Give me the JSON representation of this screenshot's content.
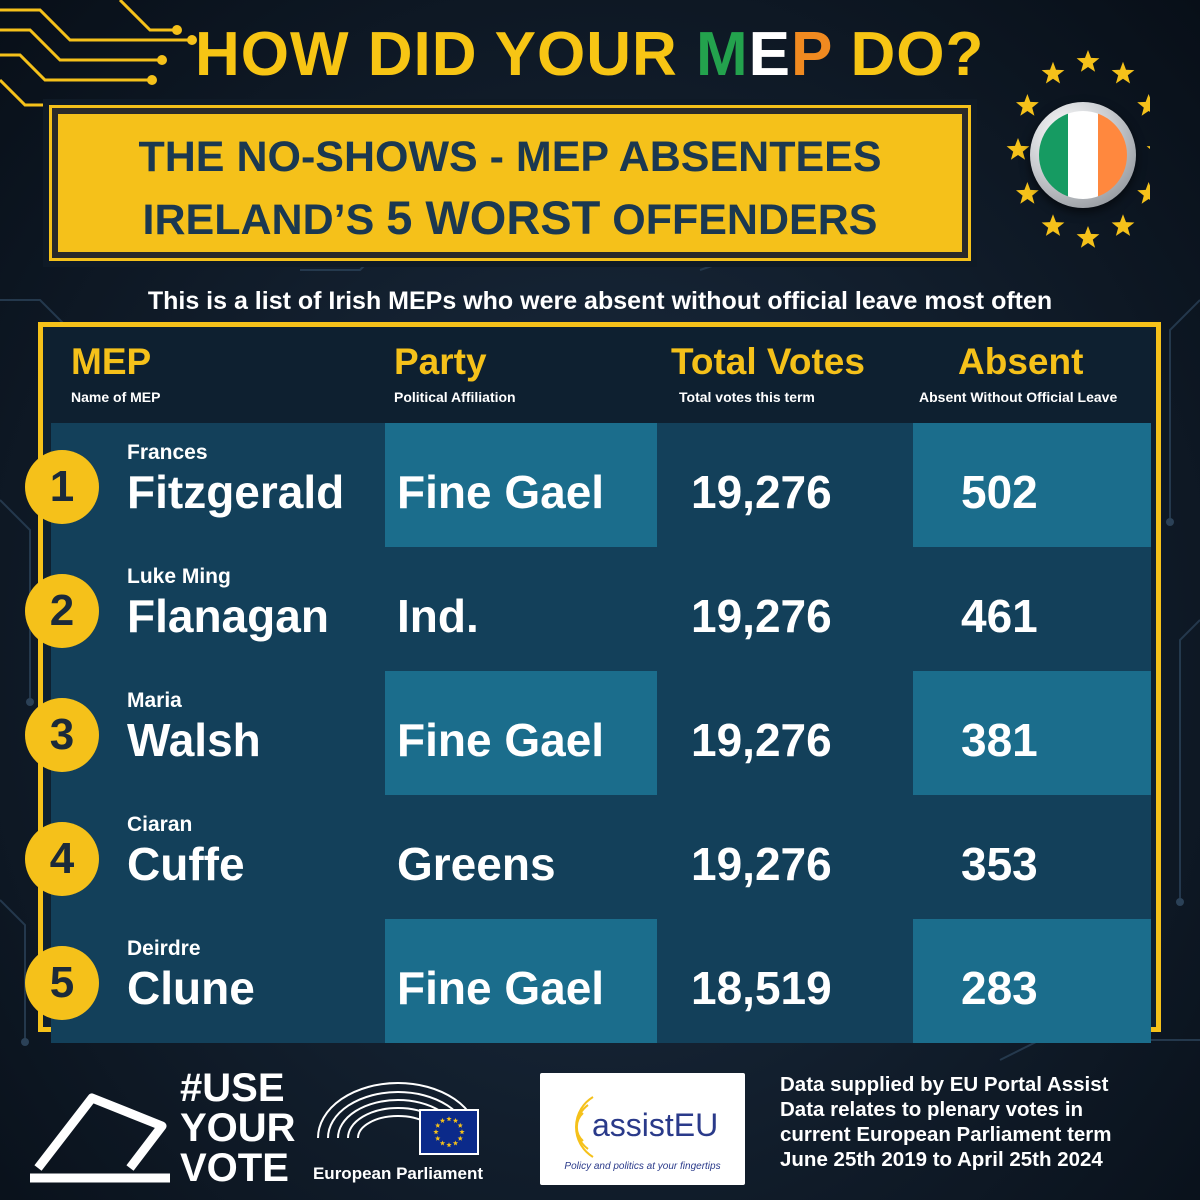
{
  "headline": {
    "part1": "HOW DID YOUR ",
    "m": "M",
    "e": "E",
    "p": "P",
    "part2": " DO?"
  },
  "title": {
    "line1_a": "THE ",
    "line1_b": "NO-SHOWS",
    "line1_c": " - MEP ABSENTEES",
    "line2_a": "IRELAND’S  ",
    "line2_b": "5 WORST",
    "line2_c": "  OFFENDERS"
  },
  "subtitle": "This is a list of Irish MEPs who were absent without official leave most often",
  "table": {
    "headers": [
      {
        "title": "MEP",
        "sub": "Name of MEP"
      },
      {
        "title": "Party",
        "sub": "Political Affiliation"
      },
      {
        "title": "Total Votes",
        "sub": "Total votes this term"
      },
      {
        "title": "Absent",
        "sub": "Absent Without Official Leave"
      }
    ],
    "rows": [
      {
        "rank": "1",
        "first": "Frances",
        "last": "Fitzgerald",
        "party": "Fine Gael",
        "votes": "19,276",
        "absent": "502"
      },
      {
        "rank": "2",
        "first": "Luke Ming",
        "last": "Flanagan",
        "party": "Ind.",
        "votes": "19,276",
        "absent": "461"
      },
      {
        "rank": "3",
        "first": "Maria",
        "last": "Walsh",
        "party": "Fine Gael",
        "votes": "19,276",
        "absent": "381"
      },
      {
        "rank": "4",
        "first": "Ciaran",
        "last": "Cuffe",
        "party": "Greens",
        "votes": "19,276",
        "absent": "353"
      },
      {
        "rank": "5",
        "first": "Deirdre",
        "last": "Clune",
        "party": "Fine Gael",
        "votes": "18,519",
        "absent": "283"
      }
    ]
  },
  "footer": {
    "use_your_vote": [
      "#USE",
      "YOUR",
      "VOTE"
    ],
    "ep_label": "European Parliament",
    "assist_name": "assistEU",
    "assist_tagline": "Policy and politics at your fingertips",
    "data_note": [
      "Data supplied by EU Portal Assist",
      "Data relates to plenary votes in",
      "current European Parliament term",
      "June 25th 2019 to April 25th 2024"
    ]
  },
  "colors": {
    "accent_yellow": "#f5c11a",
    "navy_text": "#1b3850",
    "flag_green": "#169b62",
    "flag_white": "#ffffff",
    "flag_orange": "#ff883e",
    "row_dark": "#13405a",
    "row_light": "#1b6d8c"
  },
  "icons": [
    "ballot-box-icon",
    "eu-stars-icon",
    "circuit-pattern",
    "irish-flag-icon",
    "european-parliament-logo",
    "assisteu-logo"
  ]
}
